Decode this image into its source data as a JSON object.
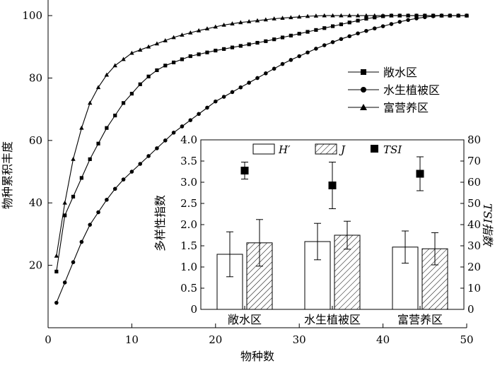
{
  "chart_data": [
    {
      "type": "line",
      "title": "",
      "xlabel": "物种数",
      "ylabel": "物种累积丰度",
      "xlim": [
        0,
        50
      ],
      "ylim": [
        0,
        105
      ],
      "xticks": [
        0,
        10,
        20,
        30,
        40,
        50
      ],
      "yticks": [
        20,
        40,
        60,
        80,
        100
      ],
      "legend": "right",
      "series": [
        {
          "name": "敞水区",
          "marker": "square",
          "x": [
            1,
            2,
            3,
            4,
            5,
            6,
            7,
            8,
            9,
            10,
            11,
            12,
            13,
            14,
            15,
            16,
            17,
            18,
            19,
            20,
            21,
            22,
            23,
            24,
            25,
            26,
            27,
            28,
            29,
            30,
            31,
            32,
            33,
            34,
            35,
            36,
            37,
            38,
            39,
            40,
            41,
            42,
            43,
            44,
            45,
            46,
            47,
            48,
            49,
            50
          ],
          "y": [
            18,
            36,
            42,
            48,
            54,
            59,
            64,
            68,
            72,
            75,
            78,
            80.5,
            82.5,
            84,
            85,
            86,
            87,
            87.6,
            88.2,
            88.8,
            89.3,
            89.8,
            90.3,
            90.8,
            91.3,
            91.8,
            92.4,
            93,
            93.6,
            94.2,
            94.8,
            95.4,
            96,
            96.6,
            97.2,
            97.8,
            98.4,
            99,
            99.4,
            99.8,
            100,
            100,
            100,
            100,
            100,
            100,
            100,
            100,
            100,
            100
          ]
        },
        {
          "name": "水生植被区",
          "marker": "circle",
          "x": [
            1,
            2,
            3,
            4,
            5,
            6,
            7,
            8,
            9,
            10,
            11,
            12,
            13,
            14,
            15,
            16,
            17,
            18,
            19,
            20,
            21,
            22,
            23,
            24,
            25,
            26,
            27,
            28,
            29,
            30,
            31,
            32,
            33,
            34,
            35,
            36,
            37,
            38,
            39,
            40,
            41,
            42,
            43,
            44,
            45,
            46,
            47,
            48,
            49,
            50
          ],
          "y": [
            8,
            14.5,
            21,
            27.5,
            33,
            37,
            41,
            44.5,
            47.5,
            50,
            52.5,
            55,
            57.5,
            60,
            62.5,
            64.5,
            66.5,
            68.5,
            70.5,
            72.5,
            74,
            75.5,
            77,
            78.5,
            80,
            81.5,
            83,
            84.5,
            85.8,
            87,
            88.2,
            89.4,
            90.5,
            91.5,
            92.5,
            93.4,
            94.3,
            95.1,
            95.9,
            96.6,
            97.3,
            98,
            98.6,
            99.1,
            99.5,
            99.8,
            100,
            100,
            100,
            100
          ]
        },
        {
          "name": "富营养区",
          "marker": "triangle",
          "x": [
            1,
            2,
            3,
            4,
            5,
            6,
            7,
            8,
            9,
            10,
            11,
            12,
            13,
            14,
            15,
            16,
            17,
            18,
            19,
            20,
            21,
            22,
            23,
            24,
            25,
            26,
            27,
            28,
            29,
            30,
            31,
            32,
            33,
            34,
            35,
            36,
            37,
            38,
            39,
            40,
            41,
            42,
            43,
            44,
            45,
            46,
            47,
            48,
            49,
            50
          ],
          "y": [
            23,
            40,
            54,
            64,
            72,
            77,
            81,
            84,
            86,
            88,
            89,
            90,
            91,
            92,
            93,
            93.8,
            94.5,
            95.2,
            95.8,
            96.4,
            97,
            97.4,
            97.8,
            98.1,
            98.4,
            98.7,
            99,
            99.2,
            99.4,
            99.6,
            99.8,
            99.9,
            100,
            100,
            100,
            100,
            100,
            100,
            100,
            100,
            100,
            100,
            100,
            100,
            100,
            100,
            100,
            100,
            100,
            100
          ]
        }
      ]
    },
    {
      "type": "bar",
      "categories": [
        "敞水区",
        "水生植被区",
        "富营养区"
      ],
      "ylabel": "多样性指数",
      "y2label": "TSI指数",
      "ylim": [
        0,
        4
      ],
      "yticks": [
        "0",
        "0.5",
        "1.0",
        "1.5",
        "2.0",
        "2.5",
        "3.0",
        "3.5",
        "4.0"
      ],
      "y2lim": [
        0,
        80
      ],
      "y2ticks": [
        0,
        10,
        20,
        30,
        40,
        50,
        60,
        70,
        80
      ],
      "legend": "top",
      "series": [
        {
          "name": "H′",
          "fill": "white",
          "values": [
            1.3,
            1.6,
            1.47
          ],
          "errors": [
            0.53,
            0.43,
            0.38
          ]
        },
        {
          "name": "J",
          "fill": "hatch",
          "values": [
            1.57,
            1.75,
            1.43
          ],
          "errors": [
            0.55,
            0.33,
            0.38
          ]
        },
        {
          "name": "TSI",
          "marker": "square",
          "axis": "right",
          "values": [
            65.5,
            58.5,
            64
          ],
          "errors": [
            4,
            11,
            8
          ]
        }
      ]
    }
  ]
}
